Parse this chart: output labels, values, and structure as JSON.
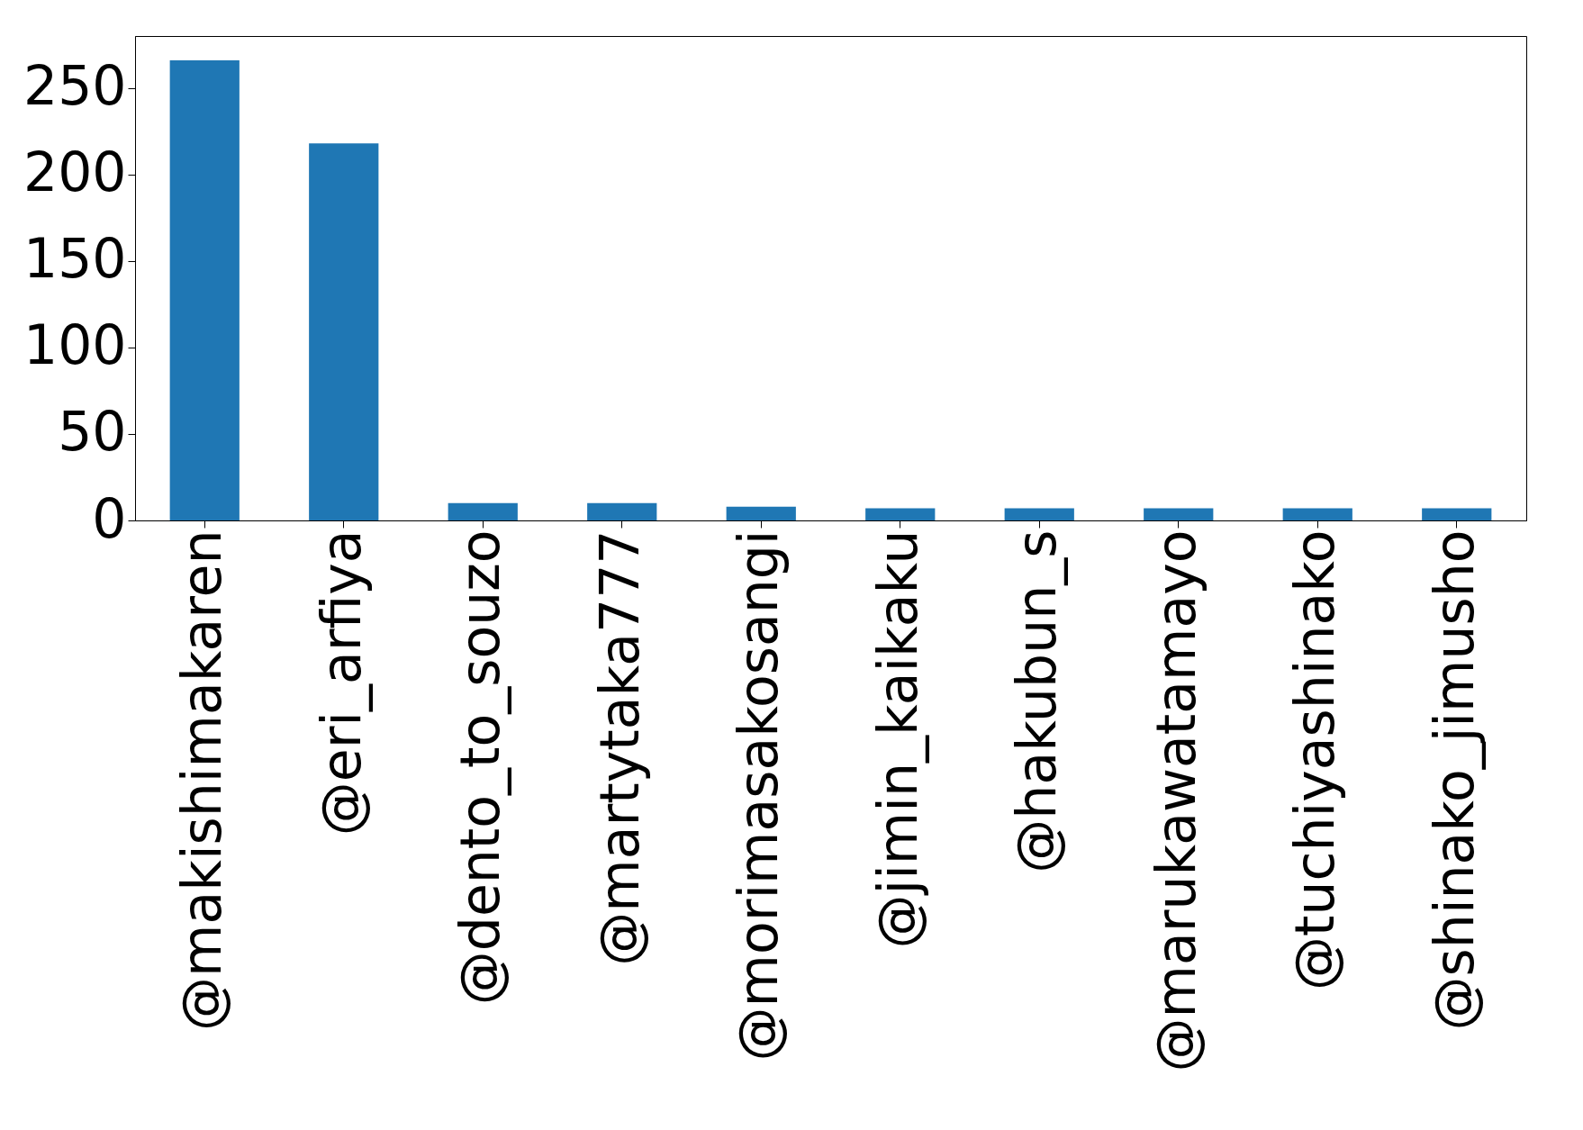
{
  "chart_data": {
    "type": "bar",
    "categories": [
      "@makishimakaren",
      "@eri_arfiya",
      "@dento_to_souzo",
      "@martytaka777",
      "@morimasakosangi",
      "@jimin_kaikaku",
      "@hakubun_s",
      "@marukawatamayo",
      "@tuchiyashinako",
      "@shinako_jimusho"
    ],
    "values": [
      266,
      218,
      10,
      10,
      8,
      7,
      7,
      7,
      7,
      7
    ],
    "color": "#1f77b4",
    "ylim": [
      0,
      280
    ],
    "yticks": [
      0,
      50,
      100,
      150,
      200,
      250
    ],
    "grid": false
  }
}
